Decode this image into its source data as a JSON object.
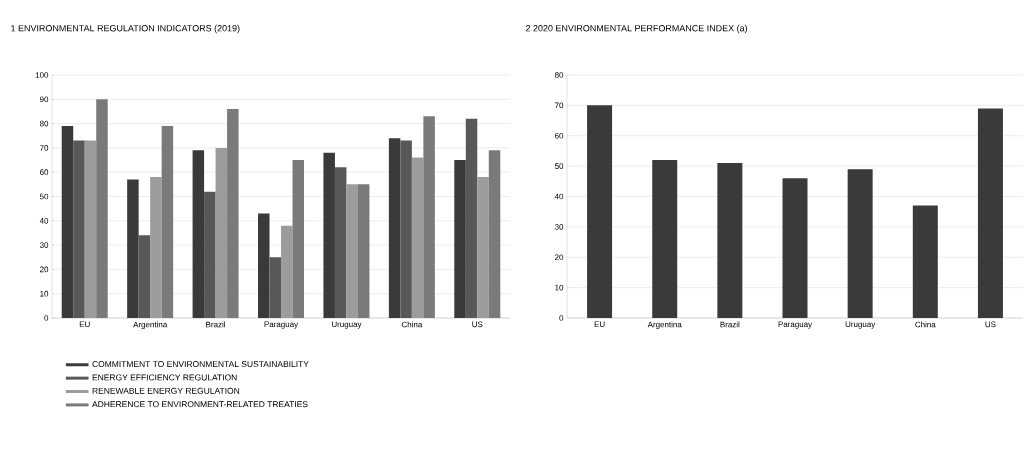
{
  "chart_data": [
    {
      "type": "bar",
      "title": "1 ENVIRONMENTAL REGULATION INDICATORS (2019)",
      "categories": [
        "EU",
        "Argentina",
        "Brazil",
        "Paraguay",
        "Uruguay",
        "China",
        "US"
      ],
      "series": [
        {
          "name": "COMMITMENT TO ENVIRONMENTAL SUSTAINABILITY",
          "color": "#3a3a3a",
          "values": [
            79,
            57,
            69,
            43,
            68,
            74,
            65
          ]
        },
        {
          "name": "ENERGY EFFICIENCY REGULATION",
          "color": "#585858",
          "values": [
            73,
            34,
            52,
            25,
            62,
            73,
            82
          ]
        },
        {
          "name": "RENEWABLE ENERGY REGULATION",
          "color": "#9c9c9c",
          "values": [
            73,
            58,
            70,
            38,
            55,
            66,
            58
          ]
        },
        {
          "name": "ADHERENCE TO ENVIRONMENT-RELATED TREATIES",
          "color": "#7a7a7a",
          "values": [
            90,
            79,
            86,
            65,
            55,
            83,
            69
          ]
        }
      ],
      "ylim": [
        0,
        100
      ],
      "yticks": [
        0,
        10,
        20,
        30,
        40,
        50,
        60,
        70,
        80,
        90,
        100
      ],
      "grid": "y",
      "legend": "bottom"
    },
    {
      "type": "bar",
      "title": "2 2020 ENVIRONMENTAL PERFORMANCE INDEX (a)",
      "categories": [
        "EU",
        "Argentina",
        "Brazil",
        "Paraguay",
        "Uruguay",
        "China",
        "US"
      ],
      "values": [
        70,
        52,
        51,
        46,
        49,
        37,
        69
      ],
      "color": "#3a3a3a",
      "ylim": [
        0,
        80
      ],
      "yticks": [
        0,
        10,
        20,
        30,
        40,
        50,
        60,
        70,
        80
      ],
      "grid": "y"
    }
  ]
}
